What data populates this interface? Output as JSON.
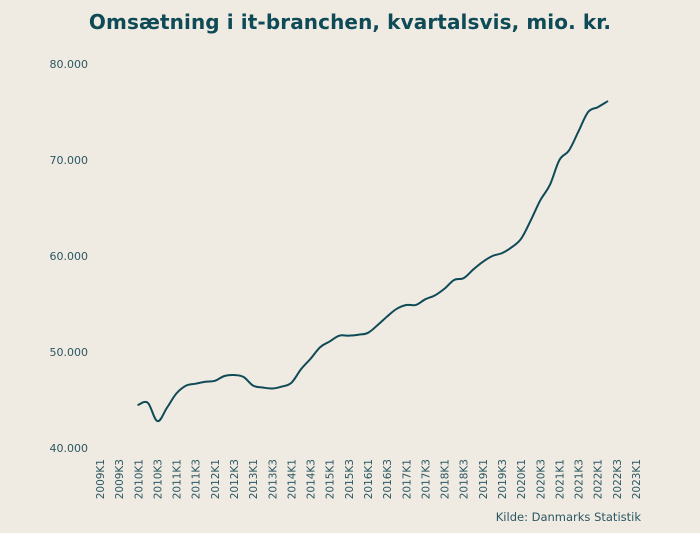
{
  "chart_data": {
    "type": "line",
    "title": "Omsætning i it-branchen, kvartalsvis, mio. kr.",
    "source": "Kilde: Danmarks Statistik",
    "xlabel": "",
    "ylabel": "",
    "ylim": [
      40000,
      80000
    ],
    "yticks": [
      40000,
      50000,
      60000,
      70000,
      80000
    ],
    "ytick_labels": [
      "40.000",
      "50.000",
      "60.000",
      "70.000",
      "80.000"
    ],
    "xtick_labels": [
      "2009K1",
      "2009K3",
      "2010K1",
      "2010K3",
      "2011K1",
      "2011K3",
      "2012K1",
      "2012K3",
      "2013K1",
      "2013K3",
      "2014K1",
      "2014K3",
      "2015K1",
      "2015K3",
      "2016K1",
      "2016K3",
      "2017K1",
      "2017K3",
      "2018K1",
      "2018K3",
      "2019K1",
      "2019K3",
      "2020K1",
      "2020K3",
      "2021K1",
      "2021K3",
      "2022K1",
      "2022K3",
      "2023K1"
    ],
    "grid": false,
    "legend": "none",
    "color": "#0f4a57",
    "x": [
      "2010K1",
      "2010K2",
      "2010K3",
      "2010K4",
      "2011K1",
      "2011K2",
      "2011K3",
      "2011K4",
      "2012K1",
      "2012K2",
      "2012K3",
      "2012K4",
      "2013K1",
      "2013K2",
      "2013K3",
      "2013K4",
      "2014K1",
      "2014K2",
      "2014K3",
      "2014K4",
      "2015K1",
      "2015K2",
      "2015K3",
      "2015K4",
      "2016K1",
      "2016K2",
      "2016K3",
      "2016K4",
      "2017K1",
      "2017K2",
      "2017K3",
      "2017K4",
      "2018K1",
      "2018K2",
      "2018K3",
      "2018K4",
      "2019K1",
      "2019K2",
      "2019K3",
      "2019K4",
      "2020K1",
      "2020K2",
      "2020K3",
      "2020K4",
      "2021K1",
      "2021K2",
      "2021K3",
      "2021K4",
      "2022K1",
      "2022K2",
      "2022K3",
      "2022K4",
      "2023K1",
      "2023K2",
      "2023K3"
    ],
    "series": [
      {
        "values": [
          44500,
          44700,
          42800,
          44200,
          45700,
          46500,
          46700,
          46900,
          47000,
          47500,
          47600,
          47400,
          46500,
          46300,
          46200,
          46400,
          46800,
          48200,
          49300,
          50500,
          51100,
          51700,
          51700,
          51800,
          52000,
          52800,
          53700,
          54500,
          54900,
          54900,
          55500,
          55900,
          56600,
          57500,
          57700,
          58600,
          59400,
          60000,
          60300,
          60900,
          61800,
          63700,
          65800,
          67400,
          70000,
          71000,
          73000,
          75000,
          75500,
          76100,
          null,
          null,
          null,
          null,
          null
        ]
      }
    ]
  }
}
